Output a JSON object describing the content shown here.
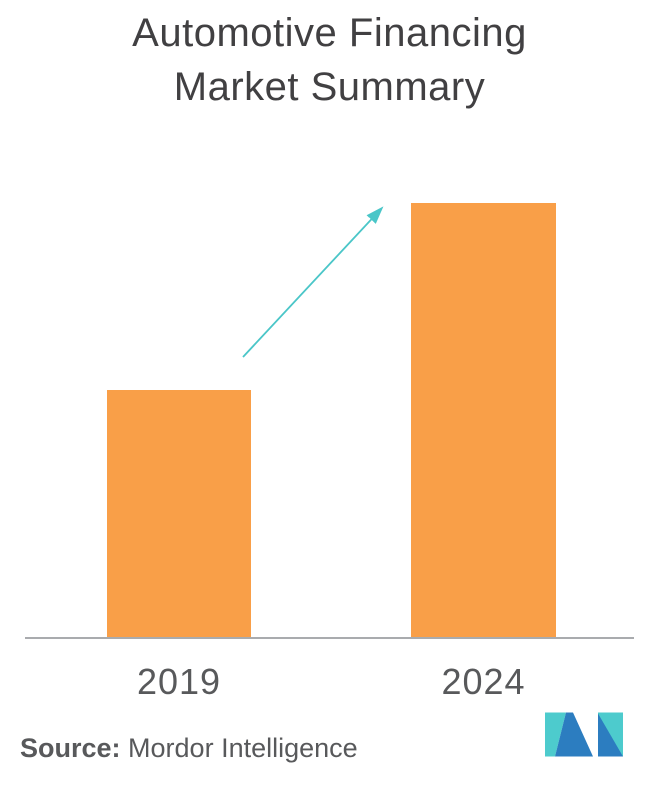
{
  "header": {
    "title_lines": [
      "Automotive Financing",
      "Market Summary"
    ]
  },
  "chart_data": {
    "type": "bar",
    "title": "Automotive Financing Market Summary",
    "categories": [
      "2019",
      "2024"
    ],
    "values": [
      57,
      100
    ],
    "value_scale": "relative height, no y-axis or value labels shown",
    "xlabel": "",
    "ylabel": "",
    "ylim": [
      0,
      100
    ],
    "grid": false,
    "legend": false,
    "annotations": [
      "teal upward growth arrow pointing from the 2019 bar toward the 2024 bar"
    ]
  },
  "footer": {
    "source_label": "Source:",
    "source_text": "Mordor Intelligence"
  },
  "colors": {
    "bar": "#F99F48",
    "arrow": "#4AC6C8",
    "title_text": "#414042",
    "axis_line": "#A9ABAE",
    "label_text": "#58595B",
    "logo_teal": "#4DCBCD",
    "logo_blue": "#2C7DC0",
    "background": "#FFFFFF"
  }
}
